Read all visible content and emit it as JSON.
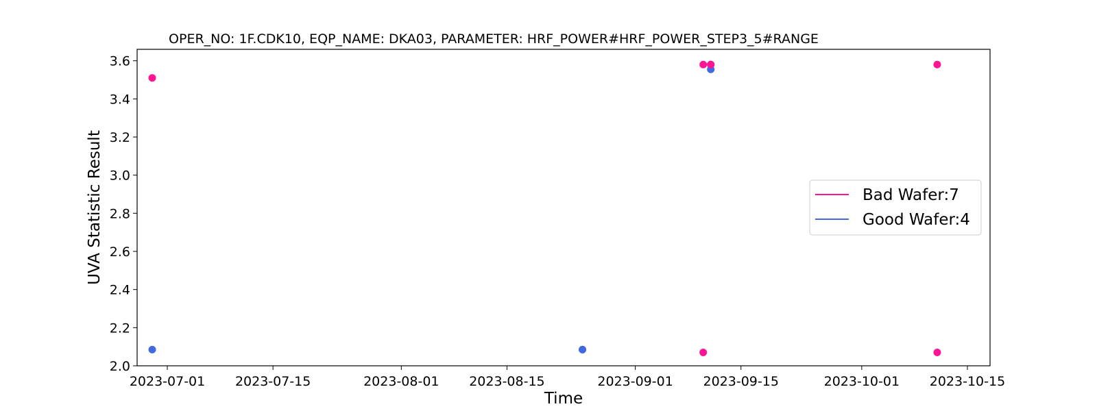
{
  "chart_data": {
    "type": "scatter",
    "title": "OPER_NO: 1F.CDK10,  EQP_NAME: DKA03,  PARAMETER: HRF_POWER#HRF_POWER_STEP3_5#RANGE",
    "xlabel": "Time",
    "ylabel": "UVA Statistic Result",
    "x_ticks": [
      "2023-07-01",
      "2023-07-15",
      "2023-08-01",
      "2023-08-15",
      "2023-09-01",
      "2023-09-15",
      "2023-10-01",
      "2023-10-15"
    ],
    "y_ticks": [
      "2.0",
      "2.2",
      "2.4",
      "2.6",
      "2.8",
      "3.0",
      "3.2",
      "3.4",
      "3.6"
    ],
    "xlim": [
      "2023-06-27",
      "2023-10-18"
    ],
    "ylim": [
      2.0,
      3.66
    ],
    "grid": false,
    "legend_position": "center-right",
    "series": [
      {
        "name": "Bad Wafer:7",
        "color": "#ff1493",
        "points": [
          {
            "x": "2023-06-29",
            "y": 3.51
          },
          {
            "x": "2023-09-10",
            "y": 3.58
          },
          {
            "x": "2023-09-10",
            "y": 2.07
          },
          {
            "x": "2023-09-11",
            "y": 3.58
          },
          {
            "x": "2023-09-11",
            "y": 3.58
          },
          {
            "x": "2023-10-11",
            "y": 3.58
          },
          {
            "x": "2023-10-11",
            "y": 2.07
          }
        ]
      },
      {
        "name": "Good Wafer:4",
        "color": "#4169e1",
        "points": [
          {
            "x": "2023-06-29",
            "y": 2.085
          },
          {
            "x": "2023-08-25",
            "y": 2.085
          },
          {
            "x": "2023-08-25",
            "y": 2.085
          },
          {
            "x": "2023-09-11",
            "y": 3.555
          }
        ]
      }
    ]
  }
}
